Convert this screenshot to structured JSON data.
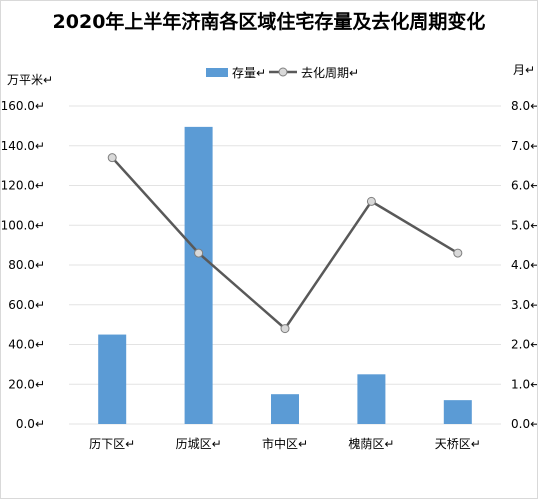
{
  "chart_data": {
    "type": "bar",
    "title": "2020年上半年济南各区域住宅存量及去化周期变化",
    "categories": [
      "历下区",
      "历城区",
      "市中区",
      "槐荫区",
      "天桥区"
    ],
    "series": [
      {
        "name": "存量",
        "kind": "bar",
        "axis": "left",
        "color": "#5b9bd5",
        "values": [
          45.0,
          149.5,
          15.0,
          25.0,
          12.0
        ]
      },
      {
        "name": "去化周期",
        "kind": "line",
        "axis": "right",
        "color": "#595959",
        "values": [
          6.7,
          4.3,
          2.4,
          5.6,
          4.3
        ]
      }
    ],
    "ylabel_left": "万平米",
    "ylabel_right": "月",
    "ylim_left": [
      0,
      160
    ],
    "ylim_right": [
      0,
      8
    ],
    "yticks_left": [
      "0.0",
      "20.0",
      "40.0",
      "60.0",
      "80.0",
      "100.0",
      "120.0",
      "140.0",
      "160.0"
    ],
    "yticks_right": [
      "0.0",
      "1.0",
      "2.0",
      "3.0",
      "4.0",
      "5.0",
      "6.0",
      "7.0",
      "8.0"
    ],
    "legend_position": "top",
    "grid": true,
    "mark_char": "↵"
  }
}
